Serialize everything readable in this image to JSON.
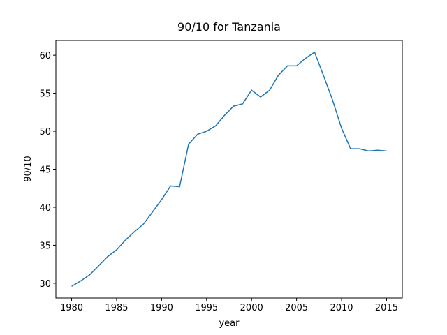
{
  "chart_data": {
    "type": "line",
    "title": "90/10 for Tanzania",
    "xlabel": "year",
    "ylabel": "90/10",
    "x": [
      1980,
      1981,
      1982,
      1983,
      1984,
      1985,
      1986,
      1987,
      1988,
      1989,
      1990,
      1991,
      1992,
      1993,
      1994,
      1995,
      1996,
      1997,
      1998,
      1999,
      2000,
      2001,
      2002,
      2003,
      2004,
      2005,
      2006,
      2007,
      2008,
      2009,
      2010,
      2011,
      2012,
      2013,
      2014,
      2015
    ],
    "series": [
      {
        "name": "90/10",
        "color": "#1f77b4",
        "values": [
          29.6,
          30.3,
          31.1,
          32.3,
          33.5,
          34.4,
          35.7,
          36.8,
          37.8,
          39.4,
          41.0,
          42.8,
          42.7,
          48.3,
          49.6,
          50.0,
          50.7,
          52.1,
          53.3,
          53.6,
          55.4,
          54.5,
          55.4,
          57.4,
          58.6,
          58.6,
          59.6,
          60.4,
          57.3,
          54.1,
          50.4,
          47.7,
          47.7,
          47.4,
          47.5,
          47.4
        ]
      }
    ],
    "xlim": [
      1978.25,
      2016.75
    ],
    "xticks": [
      1980,
      1985,
      1990,
      1995,
      2000,
      2005,
      2010,
      2015
    ],
    "ylim": [
      28.06,
      61.94
    ],
    "yticks": [
      30,
      35,
      40,
      45,
      50,
      55,
      60
    ]
  }
}
